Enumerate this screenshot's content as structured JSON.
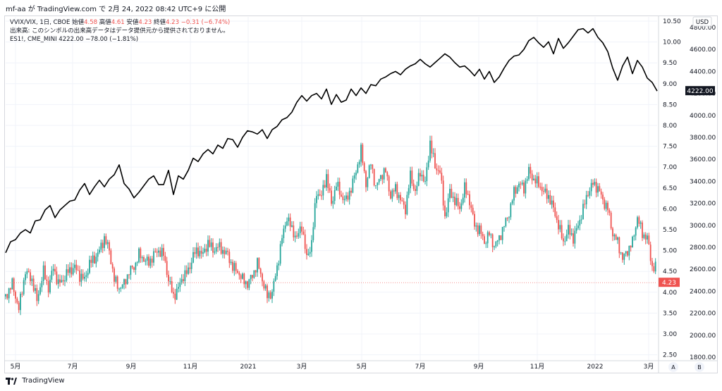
{
  "header": {
    "publisher": "mf-aa が TradingView.com で 2月 24, 2022 08:42 UTC+9 に公開"
  },
  "legend": {
    "symbol_line": "VVIX/VIX, 1日, CBOE",
    "ohlc": [
      {
        "label": "始値",
        "value": "4.58"
      },
      {
        "label": "高値",
        "value": "4.61"
      },
      {
        "label": "安値",
        "value": "4.23"
      },
      {
        "label": "終値",
        "value": "4.23"
      }
    ],
    "change": "−0.31 (−6.74%)",
    "volume_note": "出来高: このシンボルの出来高データはデータ提供元から提供されておりません。",
    "overlay_line": "ES1!, CME_MINI  4222.00  −78.00 (−1.81%)"
  },
  "chart_data": {
    "type": "candlestick+line",
    "left_axis_ticks": [
      "10.50",
      "10.00",
      "9.50",
      "9.00",
      "8.50",
      "8.00",
      "7.50",
      "7.00",
      "6.50",
      "6.00",
      "5.50",
      "5.00",
      "4.50",
      "4.00",
      "3.50",
      "3.00",
      "2.50"
    ],
    "right_axis_unit": "USD",
    "right_axis_ticks": [
      "4800.00",
      "4600.00",
      "4400.00",
      "4200.00",
      "4000.00",
      "3800.00",
      "3600.00",
      "3400.00",
      "3200.00",
      "3000.00",
      "2800.00",
      "2600.00",
      "2400.00",
      "2200.00",
      "2000.00",
      "1800.00"
    ],
    "x_tick_labels": [
      "5月",
      "7月",
      "9月",
      "11月",
      "2021",
      "3月",
      "5月",
      "7月",
      "9月",
      "11月",
      "2022",
      "3月"
    ],
    "scale_buttons": [
      "A",
      "B"
    ],
    "last_price_label": "4.23",
    "overlay_last_label": "4222.00",
    "colors": {
      "up": "#26a69a",
      "down": "#ef5350",
      "line": "#000000",
      "price_line": "#ef5350",
      "grid": "#f0f3fa"
    },
    "vvix_vix_path": [
      [
        1,
        3.9
      ],
      [
        5,
        4.2
      ],
      [
        9,
        3.6
      ],
      [
        13,
        4.5
      ],
      [
        17,
        4.3
      ],
      [
        20,
        3.8
      ],
      [
        24,
        4.5
      ],
      [
        27,
        4.1
      ],
      [
        30,
        4.6
      ],
      [
        33,
        4.2
      ],
      [
        36,
        4.3
      ],
      [
        39,
        4.5
      ],
      [
        43,
        4.6
      ],
      [
        46,
        4.4
      ],
      [
        49,
        4.3
      ],
      [
        52,
        4.7
      ],
      [
        55,
        4.8
      ],
      [
        58,
        5.0
      ],
      [
        61,
        5.3
      ],
      [
        64,
        5.0
      ],
      [
        67,
        4.3
      ],
      [
        70,
        4.1
      ],
      [
        73,
        4.2
      ],
      [
        76,
        4.5
      ],
      [
        79,
        4.6
      ],
      [
        82,
        4.9
      ],
      [
        85,
        4.8
      ],
      [
        88,
        4.7
      ],
      [
        91,
        4.9
      ],
      [
        94,
        5.0
      ],
      [
        97,
        4.9
      ],
      [
        100,
        4.3
      ],
      [
        103,
        3.9
      ],
      [
        106,
        4.1
      ],
      [
        109,
        4.4
      ],
      [
        112,
        4.5
      ],
      [
        115,
        4.9
      ],
      [
        118,
        5.0
      ],
      [
        121,
        4.9
      ],
      [
        124,
        5.2
      ],
      [
        127,
        5.0
      ],
      [
        130,
        5.1
      ],
      [
        133,
        5.0
      ],
      [
        136,
        4.9
      ],
      [
        139,
        4.6
      ],
      [
        142,
        4.5
      ],
      [
        145,
        4.3
      ],
      [
        148,
        4.2
      ],
      [
        151,
        4.4
      ],
      [
        154,
        4.7
      ],
      [
        157,
        4.3
      ],
      [
        160,
        3.9
      ],
      [
        163,
        4.0
      ],
      [
        166,
        4.6
      ],
      [
        169,
        5.3
      ],
      [
        172,
        5.8
      ],
      [
        175,
        5.5
      ],
      [
        178,
        5.3
      ],
      [
        181,
        5.6
      ],
      [
        184,
        4.8
      ],
      [
        187,
        5.2
      ],
      [
        190,
        6.4
      ],
      [
        193,
        6.3
      ],
      [
        196,
        6.8
      ],
      [
        199,
        6.1
      ],
      [
        202,
        6.6
      ],
      [
        205,
        6.3
      ],
      [
        208,
        6.2
      ],
      [
        211,
        6.5
      ],
      [
        214,
        6.9
      ],
      [
        217,
        7.4
      ],
      [
        220,
        6.6
      ],
      [
        223,
        7.1
      ],
      [
        226,
        6.5
      ],
      [
        229,
        6.8
      ],
      [
        232,
        6.9
      ],
      [
        235,
        6.3
      ],
      [
        238,
        6.5
      ],
      [
        241,
        6.2
      ],
      [
        244,
        6.0
      ],
      [
        247,
        6.8
      ],
      [
        250,
        6.4
      ],
      [
        253,
        6.9
      ],
      [
        256,
        6.6
      ],
      [
        259,
        7.6
      ],
      [
        262,
        7.0
      ],
      [
        265,
        6.9
      ],
      [
        268,
        5.8
      ],
      [
        271,
        6.4
      ],
      [
        274,
        6.2
      ],
      [
        277,
        6.0
      ],
      [
        280,
        6.5
      ],
      [
        283,
        6.2
      ],
      [
        286,
        5.6
      ],
      [
        289,
        5.5
      ],
      [
        292,
        5.2
      ],
      [
        295,
        5.4
      ],
      [
        298,
        5.1
      ],
      [
        301,
        5.3
      ],
      [
        304,
        5.6
      ],
      [
        307,
        5.9
      ],
      [
        310,
        6.4
      ],
      [
        313,
        6.6
      ],
      [
        316,
        6.5
      ],
      [
        319,
        6.9
      ],
      [
        322,
        6.7
      ],
      [
        325,
        6.6
      ],
      [
        328,
        6.4
      ],
      [
        331,
        6.3
      ],
      [
        334,
        6.0
      ],
      [
        337,
        5.6
      ],
      [
        340,
        5.2
      ],
      [
        343,
        5.5
      ],
      [
        346,
        5.3
      ],
      [
        349,
        5.6
      ],
      [
        352,
        6.0
      ],
      [
        355,
        6.4
      ],
      [
        358,
        6.6
      ],
      [
        361,
        6.5
      ],
      [
        364,
        6.2
      ],
      [
        367,
        6.0
      ],
      [
        370,
        5.4
      ],
      [
        373,
        5.2
      ],
      [
        376,
        4.8
      ],
      [
        379,
        5.0
      ],
      [
        382,
        5.2
      ],
      [
        385,
        5.8
      ],
      [
        388,
        5.4
      ],
      [
        391,
        5.3
      ],
      [
        394,
        4.6
      ],
      [
        397,
        4.6
      ]
    ],
    "es_path": [
      [
        1,
        2750
      ],
      [
        4,
        2850
      ],
      [
        7,
        2870
      ],
      [
        10,
        2930
      ],
      [
        13,
        2960
      ],
      [
        16,
        2930
      ],
      [
        19,
        3040
      ],
      [
        22,
        3050
      ],
      [
        25,
        3140
      ],
      [
        28,
        3180
      ],
      [
        31,
        3070
      ],
      [
        34,
        3140
      ],
      [
        37,
        3180
      ],
      [
        40,
        3220
      ],
      [
        43,
        3230
      ],
      [
        46,
        3320
      ],
      [
        49,
        3380
      ],
      [
        52,
        3280
      ],
      [
        55,
        3350
      ],
      [
        58,
        3410
      ],
      [
        61,
        3350
      ],
      [
        64,
        3420
      ],
      [
        67,
        3460
      ],
      [
        70,
        3550
      ],
      [
        73,
        3380
      ],
      [
        76,
        3330
      ],
      [
        79,
        3250
      ],
      [
        82,
        3300
      ],
      [
        85,
        3360
      ],
      [
        88,
        3420
      ],
      [
        91,
        3450
      ],
      [
        94,
        3370
      ],
      [
        97,
        3370
      ],
      [
        100,
        3500
      ],
      [
        103,
        3280
      ],
      [
        106,
        3450
      ],
      [
        109,
        3420
      ],
      [
        112,
        3500
      ],
      [
        115,
        3610
      ],
      [
        118,
        3580
      ],
      [
        121,
        3650
      ],
      [
        124,
        3690
      ],
      [
        127,
        3650
      ],
      [
        130,
        3730
      ],
      [
        133,
        3700
      ],
      [
        136,
        3790
      ],
      [
        139,
        3780
      ],
      [
        142,
        3710
      ],
      [
        145,
        3800
      ],
      [
        148,
        3860
      ],
      [
        151,
        3850
      ],
      [
        154,
        3830
      ],
      [
        157,
        3870
      ],
      [
        160,
        3790
      ],
      [
        163,
        3870
      ],
      [
        166,
        3900
      ],
      [
        169,
        3960
      ],
      [
        172,
        3980
      ],
      [
        175,
        4030
      ],
      [
        178,
        4120
      ],
      [
        181,
        4180
      ],
      [
        184,
        4130
      ],
      [
        187,
        4180
      ],
      [
        190,
        4200
      ],
      [
        193,
        4150
      ],
      [
        196,
        4240
      ],
      [
        199,
        4100
      ],
      [
        202,
        4190
      ],
      [
        205,
        4120
      ],
      [
        208,
        4140
      ],
      [
        211,
        4240
      ],
      [
        214,
        4180
      ],
      [
        217,
        4250
      ],
      [
        220,
        4200
      ],
      [
        223,
        4280
      ],
      [
        226,
        4270
      ],
      [
        229,
        4330
      ],
      [
        232,
        4350
      ],
      [
        235,
        4380
      ],
      [
        238,
        4400
      ],
      [
        241,
        4370
      ],
      [
        244,
        4420
      ],
      [
        247,
        4450
      ],
      [
        250,
        4470
      ],
      [
        253,
        4510
      ],
      [
        256,
        4470
      ],
      [
        259,
        4440
      ],
      [
        262,
        4480
      ],
      [
        265,
        4520
      ],
      [
        268,
        4560
      ],
      [
        271,
        4530
      ],
      [
        274,
        4480
      ],
      [
        277,
        4440
      ],
      [
        280,
        4450
      ],
      [
        283,
        4410
      ],
      [
        286,
        4360
      ],
      [
        289,
        4420
      ],
      [
        292,
        4330
      ],
      [
        295,
        4400
      ],
      [
        298,
        4300
      ],
      [
        301,
        4350
      ],
      [
        304,
        4430
      ],
      [
        307,
        4500
      ],
      [
        310,
        4540
      ],
      [
        313,
        4550
      ],
      [
        316,
        4600
      ],
      [
        319,
        4680
      ],
      [
        322,
        4710
      ],
      [
        325,
        4660
      ],
      [
        328,
        4620
      ],
      [
        331,
        4670
      ],
      [
        334,
        4560
      ],
      [
        337,
        4700
      ],
      [
        340,
        4610
      ],
      [
        343,
        4660
      ],
      [
        346,
        4720
      ],
      [
        349,
        4780
      ],
      [
        352,
        4790
      ],
      [
        355,
        4750
      ],
      [
        358,
        4790
      ],
      [
        361,
        4710
      ],
      [
        364,
        4660
      ],
      [
        367,
        4580
      ],
      [
        370,
        4430
      ],
      [
        373,
        4320
      ],
      [
        376,
        4450
      ],
      [
        379,
        4530
      ],
      [
        382,
        4380
      ],
      [
        385,
        4500
      ],
      [
        388,
        4440
      ],
      [
        391,
        4340
      ],
      [
        394,
        4300
      ],
      [
        397,
        4222
      ]
    ]
  }
}
